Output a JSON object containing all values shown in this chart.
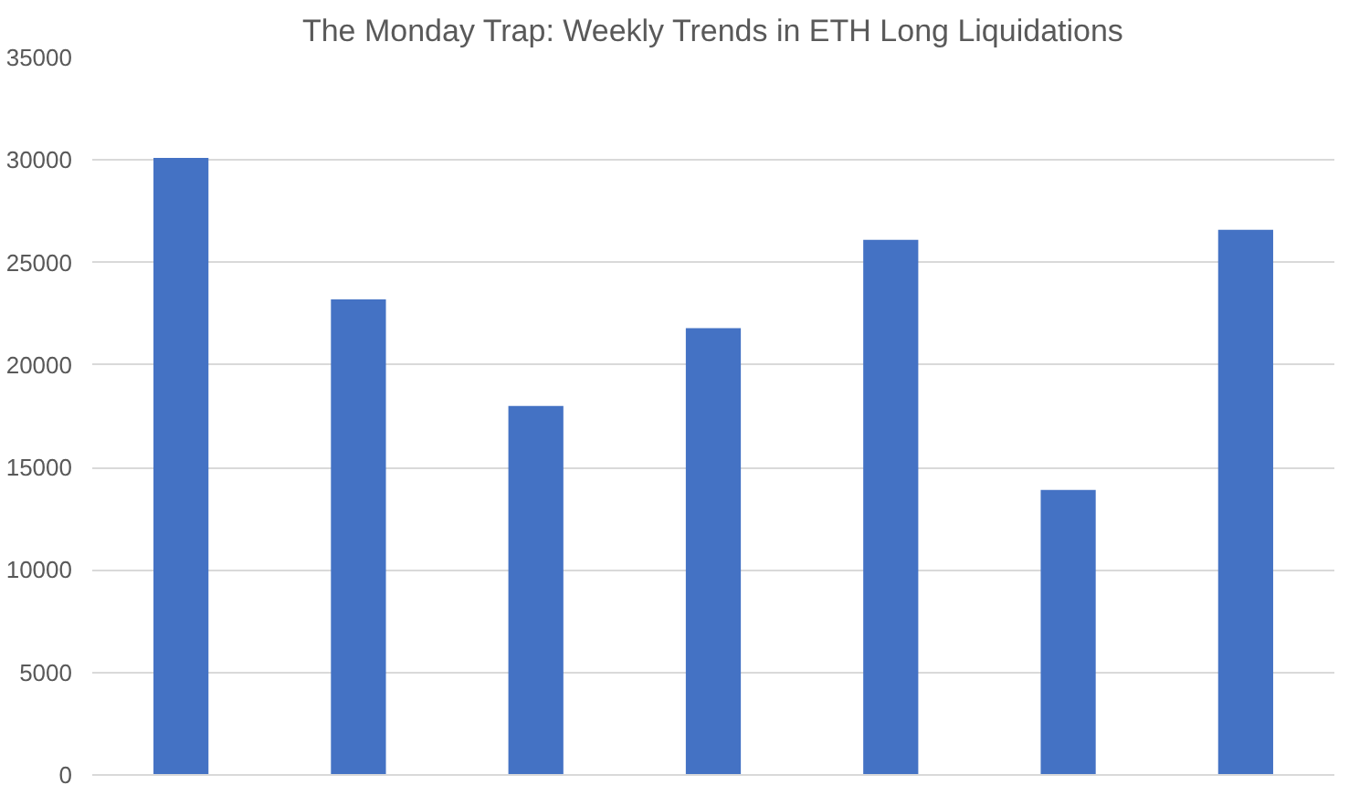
{
  "chart_data": {
    "type": "bar",
    "title": "The Monday Trap: Weekly Trends in ETH Long Liquidations",
    "categories": [
      null,
      null,
      null,
      null,
      null,
      null,
      null
    ],
    "values": [
      30100,
      23200,
      18000,
      21800,
      26100,
      13900,
      26600
    ],
    "color": "#4472c4",
    "ylim": [
      0,
      35000
    ],
    "yticks": [
      0,
      5000,
      10000,
      15000,
      20000,
      25000,
      30000,
      35000
    ],
    "grid": "y"
  }
}
